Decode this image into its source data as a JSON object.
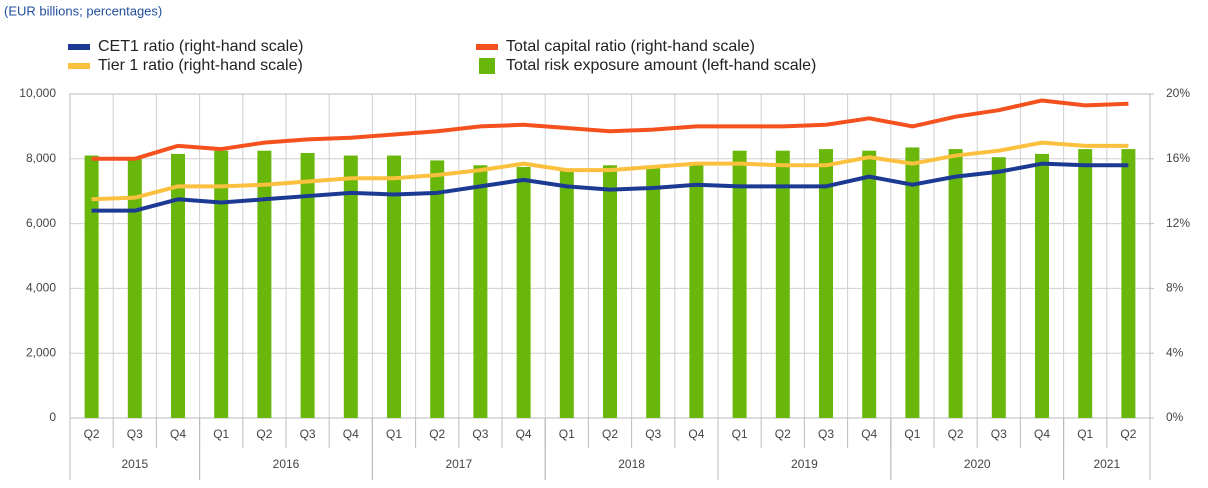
{
  "chart_data": {
    "type": "bar",
    "subtitle": "(EUR billions; percentages)",
    "categories": [
      "Q2",
      "Q3",
      "Q4",
      "Q1",
      "Q2",
      "Q3",
      "Q4",
      "Q1",
      "Q2",
      "Q3",
      "Q4",
      "Q1",
      "Q2",
      "Q3",
      "Q4",
      "Q1",
      "Q2",
      "Q3",
      "Q4",
      "Q1",
      "Q2",
      "Q3",
      "Q4",
      "Q1",
      "Q2"
    ],
    "years": [
      "2015",
      "2016",
      "2017",
      "2018",
      "2019",
      "2020",
      "2021"
    ],
    "ylim": [
      0,
      10000
    ],
    "yticks": [
      0,
      {
        "value": 2000,
        "label": "2,000"
      },
      {
        "value": 4000,
        "label": "4,000"
      },
      {
        "value": 6000,
        "label": "6,000"
      },
      {
        "value": 8000,
        "label": "8,000"
      },
      {
        "value": 10000,
        "label": "10,000"
      }
    ],
    "y2lim": [
      0,
      20
    ],
    "y2ticks": [
      {
        "value": 0,
        "label": "0%"
      },
      {
        "value": 4,
        "label": "4%"
      },
      {
        "value": 8,
        "label": "8%"
      },
      {
        "value": 12,
        "label": "12%"
      },
      {
        "value": 16,
        "label": "16%"
      },
      {
        "value": 20,
        "label": "20%"
      }
    ],
    "grid": true,
    "series": [
      {
        "name": "CET1  ratio (right-hand scale)",
        "type": "line",
        "axis": "y2",
        "color": "#1c3a94",
        "values": [
          12.8,
          12.8,
          13.5,
          13.3,
          13.5,
          13.7,
          13.9,
          13.8,
          13.9,
          14.3,
          14.7,
          14.3,
          14.1,
          14.2,
          14.4,
          14.3,
          14.3,
          14.3,
          14.9,
          14.4,
          14.9,
          15.2,
          15.7,
          15.6,
          15.6
        ]
      },
      {
        "name": "Total capital ratio (right-hand scale)",
        "type": "line",
        "axis": "y2",
        "color": "#f4511e",
        "values": [
          16.0,
          16.0,
          16.8,
          16.6,
          17.0,
          17.2,
          17.3,
          17.5,
          17.7,
          18.0,
          18.1,
          17.9,
          17.7,
          17.8,
          18.0,
          18.0,
          18.0,
          18.1,
          18.5,
          18.0,
          18.6,
          19.0,
          19.6,
          19.3,
          19.4
        ]
      },
      {
        "name": "Tier 1 ratio (right-hand scale)",
        "type": "line",
        "axis": "y2",
        "color": "#fbc03d",
        "values": [
          13.5,
          13.6,
          14.3,
          14.3,
          14.4,
          14.6,
          14.8,
          14.8,
          15.0,
          15.3,
          15.7,
          15.3,
          15.3,
          15.5,
          15.7,
          15.7,
          15.6,
          15.6,
          16.1,
          15.7,
          16.2,
          16.5,
          17.0,
          16.8,
          16.8
        ]
      },
      {
        "name": "Total risk exposure amount (left-hand scale)",
        "type": "bar",
        "axis": "y",
        "color": "#6ab70b",
        "values": [
          8100,
          8050,
          8150,
          8250,
          8250,
          8180,
          8100,
          8100,
          7950,
          7800,
          7750,
          7700,
          7800,
          7750,
          7900,
          8250,
          8250,
          8300,
          8250,
          8350,
          8300,
          8050,
          8150,
          8300,
          8300
        ]
      }
    ]
  }
}
